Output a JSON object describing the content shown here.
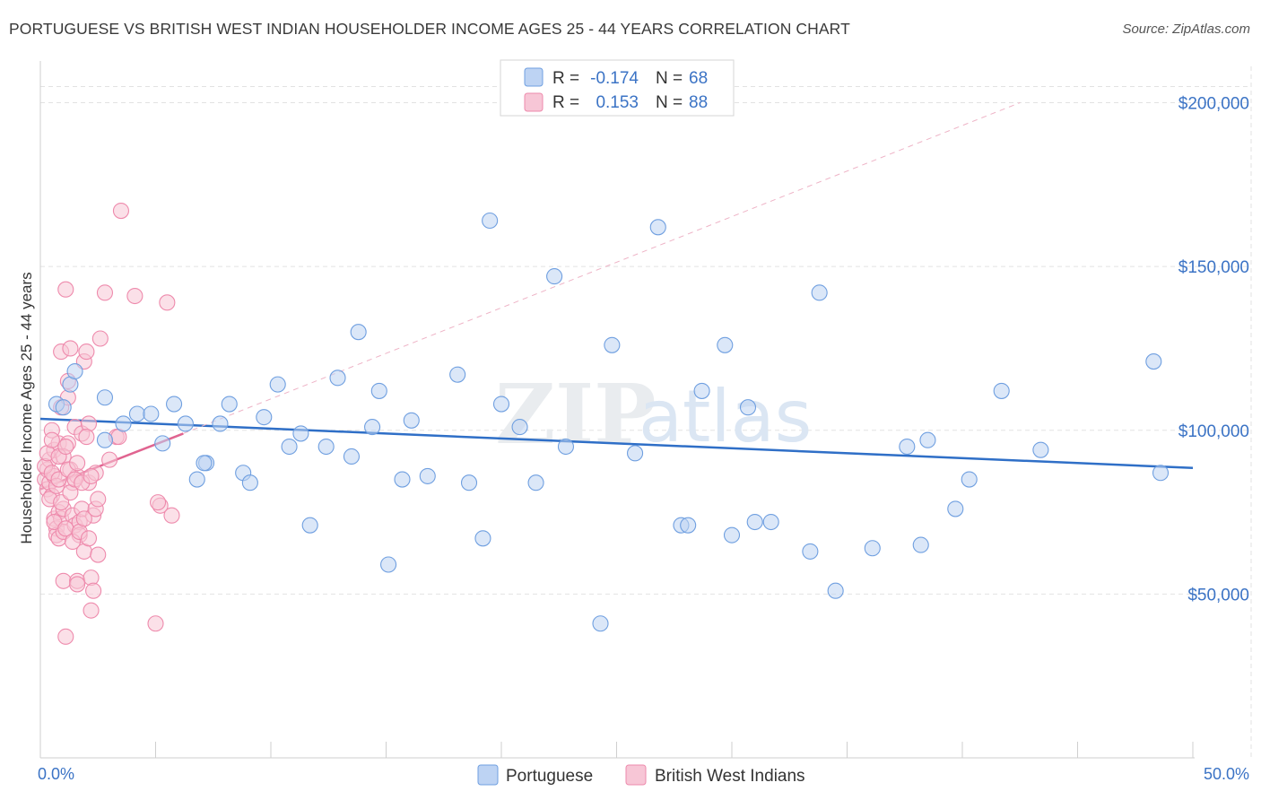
{
  "title": "PORTUGUESE VS BRITISH WEST INDIAN HOUSEHOLDER INCOME AGES 25 - 44 YEARS CORRELATION CHART",
  "source": "Source: ZipAtlas.com",
  "colors": {
    "portuguese": "#6f9fe0",
    "portuguese_fill": "#bdd3f3",
    "portuguese_line": "#2f6fc7",
    "bwi": "#ee8aac",
    "bwi_fill": "#f7c6d6",
    "bwi_line": "#e06490",
    "axis_blue": "#3b73c5"
  },
  "legend": {
    "rows": [
      {
        "r_label": "R =",
        "r_value": "-0.174",
        "n_label": "N =",
        "n_value": "68"
      },
      {
        "r_label": "R =",
        "r_value": "0.153",
        "n_label": "N =",
        "n_value": "88"
      }
    ]
  },
  "bottom_legend": [
    "Portuguese",
    "British West Indians"
  ],
  "watermark": {
    "zip": "ZIP",
    "atlas": "atlas"
  },
  "chart_data": {
    "type": "scatter",
    "title": "PORTUGUESE VS BRITISH WEST INDIAN HOUSEHOLDER INCOME AGES 25 - 44 YEARS CORRELATION CHART",
    "xlabel": "",
    "ylabel": "Householder Income Ages 25 - 44 years",
    "xlim": [
      0,
      50
    ],
    "ylim": [
      0,
      210000
    ],
    "x_tick_labels": [
      "0.0%",
      "50.0%"
    ],
    "y_ticks": [
      50000,
      100000,
      150000,
      200000
    ],
    "y_tick_labels": [
      "$50,000",
      "$100,000",
      "$150,000",
      "$200,000"
    ],
    "grid": true,
    "series": [
      {
        "name": "Portuguese",
        "points": [
          [
            0.7,
            108000
          ],
          [
            1.3,
            114000
          ],
          [
            1.5,
            118000
          ],
          [
            2.8,
            110000
          ],
          [
            2.8,
            97000
          ],
          [
            3.6,
            102000
          ],
          [
            4.2,
            105000
          ],
          [
            4.8,
            105000
          ],
          [
            5.3,
            96000
          ],
          [
            5.8,
            108000
          ],
          [
            6.3,
            102000
          ],
          [
            6.8,
            85000
          ],
          [
            7.2,
            90000
          ],
          [
            7.8,
            102000
          ],
          [
            8.2,
            108000
          ],
          [
            8.8,
            87000
          ],
          [
            9.1,
            84000
          ],
          [
            9.7,
            104000
          ],
          [
            10.3,
            114000
          ],
          [
            10.8,
            95000
          ],
          [
            11.3,
            99000
          ],
          [
            11.7,
            71000
          ],
          [
            12.4,
            95000
          ],
          [
            12.9,
            116000
          ],
          [
            13.5,
            92000
          ],
          [
            13.8,
            130000
          ],
          [
            14.4,
            101000
          ],
          [
            14.7,
            112000
          ],
          [
            15.1,
            59000
          ],
          [
            15.7,
            85000
          ],
          [
            16.1,
            103000
          ],
          [
            16.8,
            86000
          ],
          [
            18.1,
            117000
          ],
          [
            18.6,
            84000
          ],
          [
            19.2,
            67000
          ],
          [
            19.5,
            164000
          ],
          [
            20.0,
            108000
          ],
          [
            20.8,
            101000
          ],
          [
            21.5,
            84000
          ],
          [
            22.3,
            147000
          ],
          [
            22.8,
            95000
          ],
          [
            24.3,
            41000
          ],
          [
            24.8,
            126000
          ],
          [
            25.8,
            93000
          ],
          [
            26.8,
            162000
          ],
          [
            27.8,
            71000
          ],
          [
            28.1,
            71000
          ],
          [
            28.7,
            112000
          ],
          [
            29.7,
            126000
          ],
          [
            30.0,
            68000
          ],
          [
            30.7,
            107000
          ],
          [
            31.0,
            72000
          ],
          [
            31.7,
            72000
          ],
          [
            33.4,
            63000
          ],
          [
            33.8,
            142000
          ],
          [
            34.5,
            51000
          ],
          [
            36.1,
            64000
          ],
          [
            37.6,
            95000
          ],
          [
            38.2,
            65000
          ],
          [
            38.5,
            97000
          ],
          [
            39.7,
            76000
          ],
          [
            40.3,
            85000
          ],
          [
            41.7,
            112000
          ],
          [
            43.4,
            94000
          ],
          [
            48.3,
            121000
          ],
          [
            48.6,
            87000
          ],
          [
            7.1,
            90000
          ],
          [
            1.0,
            107000
          ]
        ]
      },
      {
        "name": "British West Indians",
        "points": [
          [
            0.2,
            85000
          ],
          [
            0.3,
            88000
          ],
          [
            0.3,
            82000
          ],
          [
            0.4,
            91000
          ],
          [
            0.4,
            84000
          ],
          [
            0.5,
            100000
          ],
          [
            0.5,
            80000
          ],
          [
            0.6,
            94000
          ],
          [
            0.6,
            86000
          ],
          [
            0.6,
            73000
          ],
          [
            0.7,
            70000
          ],
          [
            0.7,
            68000
          ],
          [
            0.8,
            96000
          ],
          [
            0.8,
            75000
          ],
          [
            0.8,
            67000
          ],
          [
            0.9,
            124000
          ],
          [
            0.9,
            107000
          ],
          [
            0.9,
            73000
          ],
          [
            1.0,
            76000
          ],
          [
            1.0,
            69000
          ],
          [
            1.0,
            54000
          ],
          [
            1.1,
            37000
          ],
          [
            1.1,
            143000
          ],
          [
            1.2,
            115000
          ],
          [
            1.2,
            110000
          ],
          [
            1.2,
            96000
          ],
          [
            1.3,
            125000
          ],
          [
            1.3,
            88000
          ],
          [
            1.4,
            84000
          ],
          [
            1.4,
            74000
          ],
          [
            1.5,
            101000
          ],
          [
            1.5,
            71000
          ],
          [
            1.6,
            86000
          ],
          [
            1.6,
            54000
          ],
          [
            1.7,
            72000
          ],
          [
            1.7,
            68000
          ],
          [
            1.8,
            99000
          ],
          [
            1.8,
            76000
          ],
          [
            1.9,
            121000
          ],
          [
            1.9,
            63000
          ],
          [
            2.0,
            124000
          ],
          [
            2.1,
            102000
          ],
          [
            2.1,
            84000
          ],
          [
            2.2,
            55000
          ],
          [
            2.2,
            45000
          ],
          [
            2.3,
            74000
          ],
          [
            2.4,
            87000
          ],
          [
            2.5,
            62000
          ],
          [
            2.6,
            128000
          ],
          [
            2.8,
            142000
          ],
          [
            3.0,
            91000
          ],
          [
            3.3,
            98000
          ],
          [
            3.5,
            167000
          ],
          [
            4.1,
            141000
          ],
          [
            5.0,
            41000
          ],
          [
            5.2,
            77000
          ],
          [
            5.5,
            139000
          ],
          [
            5.7,
            74000
          ],
          [
            0.2,
            89000
          ],
          [
            0.3,
            93000
          ],
          [
            0.4,
            79000
          ],
          [
            0.5,
            87000
          ],
          [
            0.6,
            72000
          ],
          [
            0.7,
            83000
          ],
          [
            0.8,
            85000
          ],
          [
            0.9,
            78000
          ],
          [
            1.0,
            92000
          ],
          [
            1.1,
            70000
          ],
          [
            1.2,
            88000
          ],
          [
            1.3,
            81000
          ],
          [
            1.4,
            66000
          ],
          [
            1.5,
            85000
          ],
          [
            1.6,
            90000
          ],
          [
            1.7,
            69000
          ],
          [
            1.8,
            84000
          ],
          [
            1.9,
            73000
          ],
          [
            2.0,
            98000
          ],
          [
            2.1,
            67000
          ],
          [
            2.2,
            86000
          ],
          [
            2.3,
            51000
          ],
          [
            2.4,
            76000
          ],
          [
            2.5,
            79000
          ],
          [
            0.5,
            97000
          ],
          [
            0.8,
            92000
          ],
          [
            1.1,
            95000
          ],
          [
            3.4,
            98000
          ],
          [
            5.1,
            78000
          ],
          [
            1.6,
            53000
          ]
        ]
      }
    ],
    "trend_lines": [
      {
        "series": "Portuguese",
        "x": [
          0,
          50
        ],
        "y": [
          103500,
          88500
        ],
        "style": "solid"
      },
      {
        "series": "British West Indians",
        "x": [
          0,
          6.2
        ],
        "y": [
          82000,
          99000
        ],
        "style": "solid"
      },
      {
        "series": "British West Indians",
        "x": [
          6.2,
          42.5
        ],
        "y": [
          99000,
          200000
        ],
        "style": "dashed"
      }
    ]
  }
}
